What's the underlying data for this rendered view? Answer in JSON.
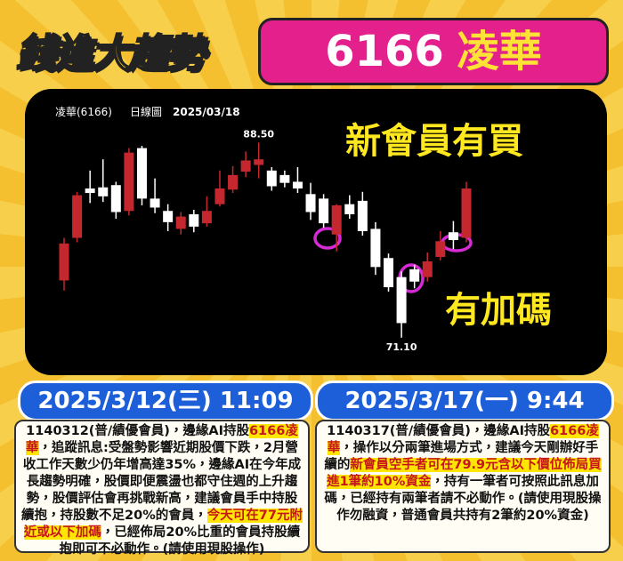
{
  "header": {
    "logo": "錢進大趨勢",
    "code": "6166",
    "name": "凌華"
  },
  "chart_data": {
    "type": "candlestick",
    "title": "凌華(6166)",
    "subtitle": "日線圖",
    "date": "2025/03/18",
    "open": [
      76.2,
      80.0,
      84.4,
      84.5,
      84.7,
      82.4,
      88.0,
      83.5,
      82.4,
      80.8,
      82.1,
      81.3,
      83.0,
      84.3,
      85.9,
      86.5,
      86.0,
      85.6,
      85.0,
      83.9,
      83.5,
      80.3,
      83.0,
      83.3,
      80.8,
      78.2,
      76.5,
      77.2,
      76.5,
      78.3,
      80.5,
      80.0
    ],
    "high": [
      80.0,
      84.1,
      86.0,
      87.0,
      85.0,
      88.0,
      88.2,
      85.3,
      83.0,
      82.3,
      82.5,
      83.7,
      86.0,
      86.4,
      87.7,
      88.5,
      86.3,
      86.0,
      86.3,
      84.9,
      83.9,
      83.0,
      83.8,
      84.1,
      81.4,
      78.6,
      77.0,
      77.6,
      78.7,
      80.6,
      81.5,
      85.0
    ],
    "low": [
      75.3,
      79.6,
      83.1,
      83.2,
      81.7,
      82.0,
      82.9,
      82.2,
      80.6,
      80.3,
      80.5,
      81.0,
      82.8,
      84.0,
      85.4,
      85.3,
      84.2,
      84.5,
      84.0,
      81.6,
      80.9,
      78.8,
      81.7,
      80.2,
      76.7,
      75.2,
      71.1,
      75.5,
      76.1,
      78.0,
      79.0,
      79.6
    ],
    "close": [
      79.5,
      83.8,
      84.0,
      83.7,
      82.3,
      87.6,
      83.5,
      82.7,
      81.4,
      81.9,
      81.0,
      82.4,
      84.4,
      85.6,
      86.9,
      87.0,
      84.6,
      84.9,
      84.4,
      82.3,
      81.3,
      82.9,
      82.1,
      80.6,
      77.4,
      75.6,
      72.4,
      76.1,
      77.9,
      79.7,
      79.8,
      84.4
    ],
    "ylim": [
      69.5,
      90.9
    ],
    "up_color": "#c4282e",
    "down_color": "#ffffff",
    "annotations": [
      {
        "text": "88.50",
        "value": 88.5
      },
      {
        "text": "71.10",
        "value": 71.1
      }
    ]
  },
  "callouts": [
    "新會員有買",
    "有加碼"
  ],
  "posts": [
    {
      "time": "2025/3/12(三) 11:09",
      "segments": [
        {
          "text": "1140312(普/績優會員)，邊緣AI持股",
          "highlight": false
        },
        {
          "text": "6166凌華",
          "highlight": true
        },
        {
          "text": "，追蹤訊息:受盤勢影響近期股價下跌，2月營收工作天數少仍年增高達35%，邊緣AI在今年成長趨勢明確，股價即便震盪也都守住週的上升趨勢，股價評估會再挑戰新高，建議會員手中持股續抱，持股數不足20%的會員，",
          "highlight": false
        },
        {
          "text": "今天可在77元附近或以下加碼",
          "highlight": true
        },
        {
          "text": "，已經佈局20%比重的會員持股續抱即可不必動作。(請使用現股操作)",
          "highlight": false
        }
      ]
    },
    {
      "time": "2025/3/17(一) 9:44",
      "segments": [
        {
          "text": "1140317(普/績優會員)，邊緣AI持股",
          "highlight": false
        },
        {
          "text": "6166凌華",
          "highlight": true
        },
        {
          "text": "，操作以分兩筆進場方式，建議今天剛辦好手續的",
          "highlight": false
        },
        {
          "text": "新會員空手者可在79.9元含以下價位佈局買進1筆約10%資金",
          "highlight": true
        },
        {
          "text": "，持有一筆者可按照此訊息加碼，已經持有兩筆者請不必動作。(請使用現股操作勿融資，普通會員共持有2筆約20%資金)",
          "highlight": false
        }
      ]
    }
  ]
}
